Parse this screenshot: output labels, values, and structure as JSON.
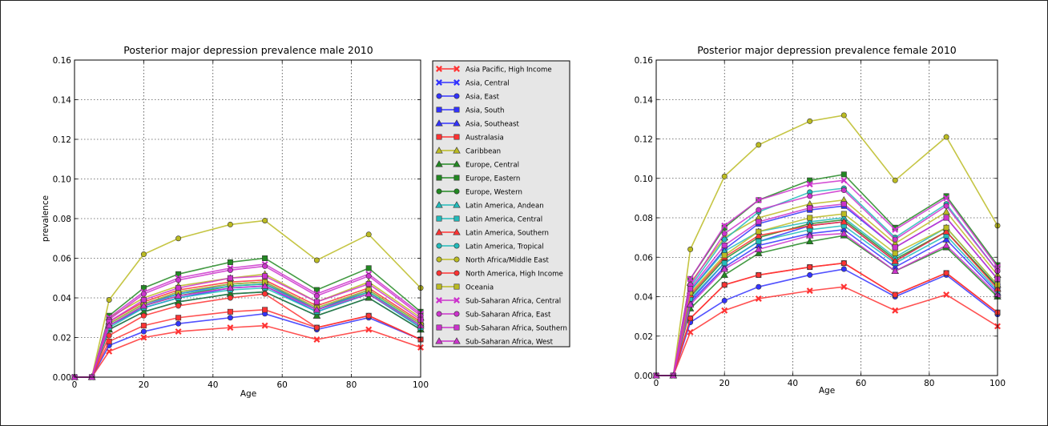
{
  "chart_data": [
    {
      "type": "line",
      "title": "Posterior major depression prevalence male 2010",
      "xlabel": "Age",
      "ylabel": "prevalence",
      "xlim": [
        0,
        100
      ],
      "ylim": [
        0,
        0.16
      ],
      "xticks": [
        "0",
        "20",
        "40",
        "60",
        "80",
        "100"
      ],
      "yticks": [
        "0.00",
        "0.02",
        "0.04",
        "0.06",
        "0.08",
        "0.10",
        "0.12",
        "0.14",
        "0.16"
      ],
      "grid": true,
      "legend_position": "right, outside plot",
      "x": [
        0,
        3,
        5,
        10,
        20,
        30,
        45,
        55,
        70,
        85,
        100
      ],
      "series": [
        {
          "name": "Asia Pacific, High Income",
          "color": "#ff3333",
          "marker": "x",
          "values": [
            0,
            0,
            0,
            0.013,
            0.02,
            0.023,
            0.025,
            0.026,
            0.019,
            0.024,
            0.015
          ]
        },
        {
          "name": "Asia, Central",
          "color": "#3333ff",
          "marker": "x",
          "values": [
            0,
            0,
            0,
            0.026,
            0.035,
            0.04,
            0.045,
            0.046,
            0.033,
            0.042,
            0.025
          ]
        },
        {
          "name": "Asia, East",
          "color": "#3333ff",
          "marker": "o",
          "values": [
            0,
            0,
            0,
            0.016,
            0.023,
            0.027,
            0.03,
            0.032,
            0.024,
            0.03,
            0.019
          ]
        },
        {
          "name": "Asia, South",
          "color": "#3333ff",
          "marker": "s",
          "values": [
            0,
            0,
            0,
            0.027,
            0.037,
            0.042,
            0.047,
            0.048,
            0.034,
            0.044,
            0.027
          ]
        },
        {
          "name": "Asia, Southeast",
          "color": "#3333ff",
          "marker": "^",
          "values": [
            0,
            0,
            0,
            0.024,
            0.033,
            0.038,
            0.042,
            0.043,
            0.031,
            0.04,
            0.024
          ]
        },
        {
          "name": "Australasia",
          "color": "#ff3333",
          "marker": "s",
          "values": [
            0,
            0,
            0,
            0.018,
            0.026,
            0.03,
            0.033,
            0.034,
            0.025,
            0.031,
            0.019
          ]
        },
        {
          "name": "Caribbean",
          "color": "#bbbb22",
          "marker": "^",
          "values": [
            0,
            0,
            0,
            0.03,
            0.04,
            0.046,
            0.05,
            0.052,
            0.038,
            0.048,
            0.03
          ]
        },
        {
          "name": "Europe, Central",
          "color": "#228822",
          "marker": "^",
          "values": [
            0,
            0,
            0,
            0.024,
            0.033,
            0.038,
            0.042,
            0.043,
            0.031,
            0.04,
            0.024
          ]
        },
        {
          "name": "Europe, Eastern",
          "color": "#228822",
          "marker": "s",
          "values": [
            0,
            0,
            0,
            0.031,
            0.045,
            0.052,
            0.058,
            0.06,
            0.044,
            0.055,
            0.033
          ]
        },
        {
          "name": "Europe, Western",
          "color": "#228822",
          "marker": "o",
          "values": [
            0,
            0,
            0,
            0.026,
            0.036,
            0.041,
            0.046,
            0.047,
            0.034,
            0.043,
            0.026
          ]
        },
        {
          "name": "Latin America, Andean",
          "color": "#22bbbb",
          "marker": "^",
          "values": [
            0,
            0,
            0,
            0.027,
            0.037,
            0.043,
            0.047,
            0.048,
            0.035,
            0.044,
            0.027
          ]
        },
        {
          "name": "Latin America, Central",
          "color": "#22bbbb",
          "marker": "s",
          "values": [
            0,
            0,
            0,
            0.025,
            0.035,
            0.04,
            0.044,
            0.045,
            0.033,
            0.042,
            0.025
          ]
        },
        {
          "name": "Latin America, Southern",
          "color": "#ff3333",
          "marker": "^",
          "values": [
            0,
            0,
            0,
            0.028,
            0.038,
            0.044,
            0.048,
            0.049,
            0.036,
            0.045,
            0.028
          ]
        },
        {
          "name": "Latin America, Tropical",
          "color": "#22bbbb",
          "marker": "o",
          "values": [
            0,
            0,
            0,
            0.026,
            0.036,
            0.042,
            0.046,
            0.047,
            0.034,
            0.043,
            0.026
          ]
        },
        {
          "name": "North Africa/Middle East",
          "color": "#bbbb22",
          "marker": "o",
          "values": [
            0,
            0,
            0,
            0.039,
            0.062,
            0.07,
            0.077,
            0.079,
            0.059,
            0.072,
            0.045
          ]
        },
        {
          "name": "North America, High Income",
          "color": "#ff3333",
          "marker": "o",
          "values": [
            0,
            0,
            0,
            0.021,
            0.031,
            0.036,
            0.04,
            0.042,
            0.025,
            0.031,
            0.019
          ]
        },
        {
          "name": "Oceania",
          "color": "#bbbb22",
          "marker": "s",
          "values": [
            0,
            0,
            0,
            0.027,
            0.037,
            0.043,
            0.047,
            0.048,
            0.035,
            0.044,
            0.027
          ]
        },
        {
          "name": "Sub-Saharan Africa, Central",
          "color": "#cc33cc",
          "marker": "x",
          "values": [
            0,
            0,
            0,
            0.03,
            0.043,
            0.05,
            0.055,
            0.057,
            0.042,
            0.052,
            0.032
          ]
        },
        {
          "name": "Sub-Saharan Africa, East",
          "color": "#cc33cc",
          "marker": "o",
          "values": [
            0,
            0,
            0,
            0.029,
            0.042,
            0.049,
            0.054,
            0.056,
            0.041,
            0.051,
            0.031
          ]
        },
        {
          "name": "Sub-Saharan Africa, Southern",
          "color": "#cc33cc",
          "marker": "s",
          "values": [
            0,
            0,
            0,
            0.028,
            0.039,
            0.045,
            0.05,
            0.051,
            0.038,
            0.047,
            0.029
          ]
        },
        {
          "name": "Sub-Saharan Africa, West",
          "color": "#cc33cc",
          "marker": "^",
          "values": [
            0,
            0,
            0,
            0.026,
            0.036,
            0.041,
            0.045,
            0.046,
            0.034,
            0.042,
            0.026
          ]
        }
      ]
    },
    {
      "type": "line",
      "title": "Posterior major depression prevalence female 2010",
      "xlabel": "Age",
      "ylabel": "",
      "xlim": [
        0,
        100
      ],
      "ylim": [
        0,
        0.16
      ],
      "xticks": [
        "0",
        "20",
        "40",
        "60",
        "80",
        "100"
      ],
      "yticks": [
        "0.00",
        "0.02",
        "0.04",
        "0.06",
        "0.08",
        "0.10",
        "0.12",
        "0.14",
        "0.16"
      ],
      "grid": true,
      "legend_position": "none",
      "x": [
        0,
        3,
        5,
        10,
        20,
        30,
        45,
        55,
        70,
        85,
        100
      ],
      "series": [
        {
          "color": "#ff3333",
          "marker": "x",
          "values": [
            0,
            0,
            0,
            0.022,
            0.033,
            0.039,
            0.043,
            0.045,
            0.033,
            0.041,
            0.025
          ]
        },
        {
          "color": "#3333ff",
          "marker": "x",
          "values": [
            0,
            0,
            0,
            0.038,
            0.057,
            0.068,
            0.076,
            0.078,
            0.058,
            0.073,
            0.045
          ]
        },
        {
          "color": "#3333ff",
          "marker": "o",
          "values": [
            0,
            0,
            0,
            0.027,
            0.038,
            0.045,
            0.051,
            0.054,
            0.04,
            0.051,
            0.031
          ]
        },
        {
          "color": "#3333ff",
          "marker": "s",
          "values": [
            0,
            0,
            0,
            0.043,
            0.064,
            0.077,
            0.084,
            0.086,
            0.065,
            0.08,
            0.049
          ]
        },
        {
          "color": "#3333ff",
          "marker": "^",
          "values": [
            0,
            0,
            0,
            0.037,
            0.055,
            0.066,
            0.072,
            0.074,
            0.055,
            0.069,
            0.042
          ]
        },
        {
          "color": "#ff3333",
          "marker": "s",
          "values": [
            0,
            0,
            0,
            0.029,
            0.046,
            0.051,
            0.055,
            0.057,
            0.041,
            0.052,
            0.032
          ]
        },
        {
          "color": "#bbbb22",
          "marker": "^",
          "values": [
            0,
            0,
            0,
            0.047,
            0.07,
            0.08,
            0.087,
            0.089,
            0.067,
            0.083,
            0.051
          ]
        },
        {
          "color": "#228822",
          "marker": "^",
          "values": [
            0,
            0,
            0,
            0.034,
            0.051,
            0.062,
            0.068,
            0.071,
            0.053,
            0.065,
            0.04
          ]
        },
        {
          "color": "#228822",
          "marker": "s",
          "values": [
            0,
            0,
            0,
            0.049,
            0.075,
            0.089,
            0.099,
            0.102,
            0.075,
            0.091,
            0.056
          ]
        },
        {
          "color": "#228822",
          "marker": "o",
          "values": [
            0,
            0,
            0,
            0.04,
            0.059,
            0.07,
            0.077,
            0.079,
            0.059,
            0.073,
            0.045
          ]
        },
        {
          "color": "#22bbbb",
          "marker": "^",
          "values": [
            0,
            0,
            0,
            0.043,
            0.063,
            0.073,
            0.078,
            0.08,
            0.06,
            0.075,
            0.046
          ]
        },
        {
          "color": "#22bbbb",
          "marker": "s",
          "values": [
            0,
            0,
            0,
            0.039,
            0.057,
            0.068,
            0.074,
            0.076,
            0.057,
            0.071,
            0.043
          ]
        },
        {
          "color": "#ff3333",
          "marker": "^",
          "values": [
            0,
            0,
            0,
            0.041,
            0.06,
            0.071,
            0.076,
            0.078,
            0.058,
            0.073,
            0.044
          ]
        },
        {
          "color": "#22bbbb",
          "marker": "o",
          "values": [
            0,
            0,
            0,
            0.045,
            0.069,
            0.083,
            0.093,
            0.095,
            0.07,
            0.087,
            0.053
          ]
        },
        {
          "color": "#bbbb22",
          "marker": "o",
          "values": [
            0,
            0,
            0,
            0.064,
            0.101,
            0.117,
            0.129,
            0.132,
            0.099,
            0.121,
            0.076
          ]
        },
        {
          "color": "#ff3333",
          "marker": "o",
          "values": [
            0,
            0,
            0,
            0.029,
            0.046,
            0.051,
            0.055,
            0.057,
            0.041,
            0.052,
            0.032
          ]
        },
        {
          "color": "#bbbb22",
          "marker": "s",
          "values": [
            0,
            0,
            0,
            0.042,
            0.061,
            0.073,
            0.08,
            0.082,
            0.062,
            0.075,
            0.046
          ]
        },
        {
          "color": "#cc33cc",
          "marker": "x",
          "values": [
            0,
            0,
            0,
            0.049,
            0.076,
            0.089,
            0.097,
            0.099,
            0.074,
            0.09,
            0.055
          ]
        },
        {
          "color": "#cc33cc",
          "marker": "o",
          "values": [
            0,
            0,
            0,
            0.046,
            0.072,
            0.084,
            0.091,
            0.094,
            0.069,
            0.086,
            0.053
          ]
        },
        {
          "color": "#cc33cc",
          "marker": "s",
          "values": [
            0,
            0,
            0,
            0.044,
            0.066,
            0.078,
            0.085,
            0.087,
            0.065,
            0.08,
            0.049
          ]
        },
        {
          "color": "#cc33cc",
          "marker": "^",
          "values": [
            0,
            0,
            0,
            0.036,
            0.054,
            0.064,
            0.071,
            0.072,
            0.053,
            0.066,
            0.041
          ]
        }
      ]
    }
  ]
}
